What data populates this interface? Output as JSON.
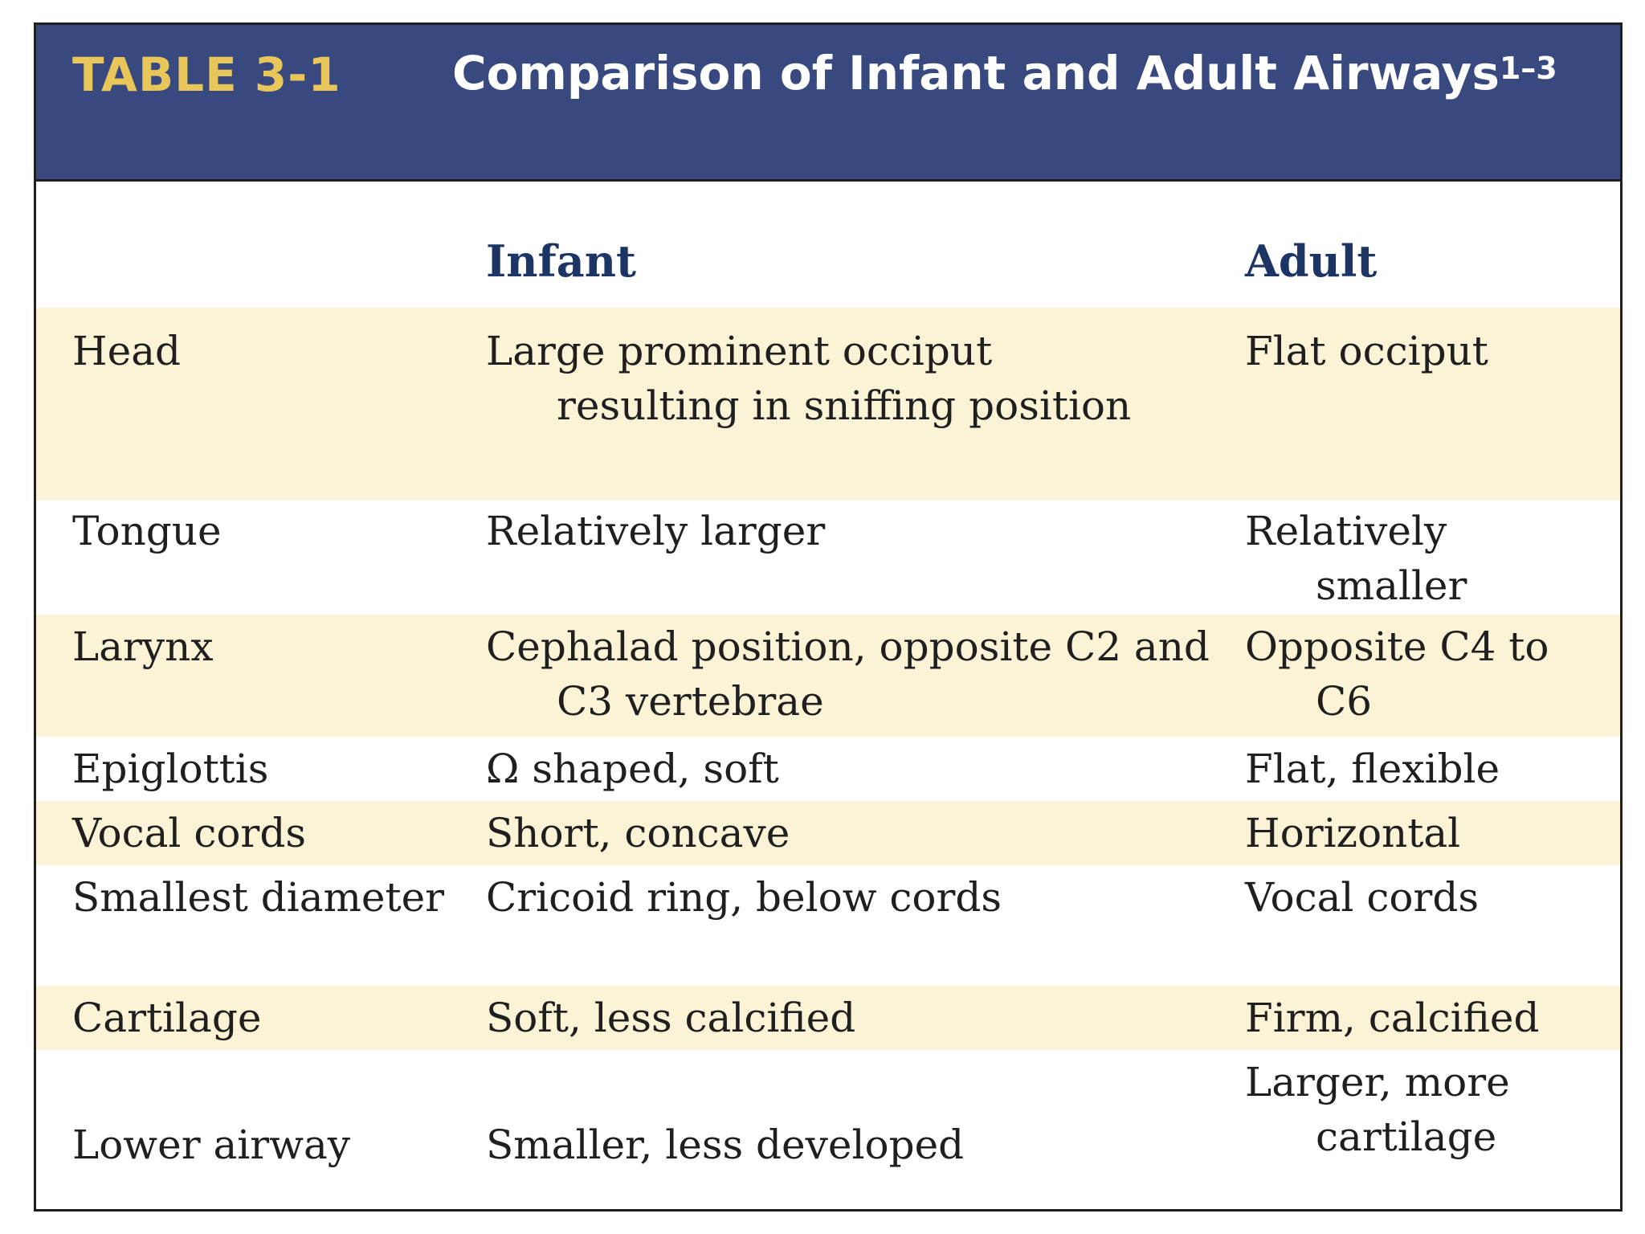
{
  "table_number": "TABLE 3-1",
  "title": "Comparison of Infant and Adult Airways",
  "title_superscript": "1–3",
  "columns": {
    "feature": "",
    "infant": "Infant",
    "adult": "Adult"
  },
  "rows": [
    {
      "feature": "Head",
      "infant": "Large prominent occiput resulting in sniffing position",
      "adult": "Flat occiput"
    },
    {
      "feature": "Tongue",
      "infant": "Relatively larger",
      "adult": "Relatively smaller"
    },
    {
      "feature": "Larynx",
      "infant": "Cephalad position, opposite C2 and C3 vertebrae",
      "adult": "Opposite C4 to C6"
    },
    {
      "feature": "Epiglottis",
      "infant": "Ω shaped, soft",
      "adult": "Flat, flexible"
    },
    {
      "feature": "Vocal cords",
      "infant": "Short, concave",
      "adult": "Horizontal"
    },
    {
      "feature": "Smallest diameter",
      "infant": "Cricoid ring, below cords",
      "adult": "Vocal cords"
    },
    {
      "feature": "Cartilage",
      "infant": "Soft, less calcified",
      "adult": "Firm, calcified"
    },
    {
      "feature": "Lower airway",
      "infant": "Smaller, less developed",
      "adult": "Larger, more cartilage"
    }
  ],
  "colors": {
    "header_bg": "#37497e",
    "table_number": "#e9c65a",
    "column_head": "#1d3564",
    "row_shade": "#fbf3d6"
  }
}
